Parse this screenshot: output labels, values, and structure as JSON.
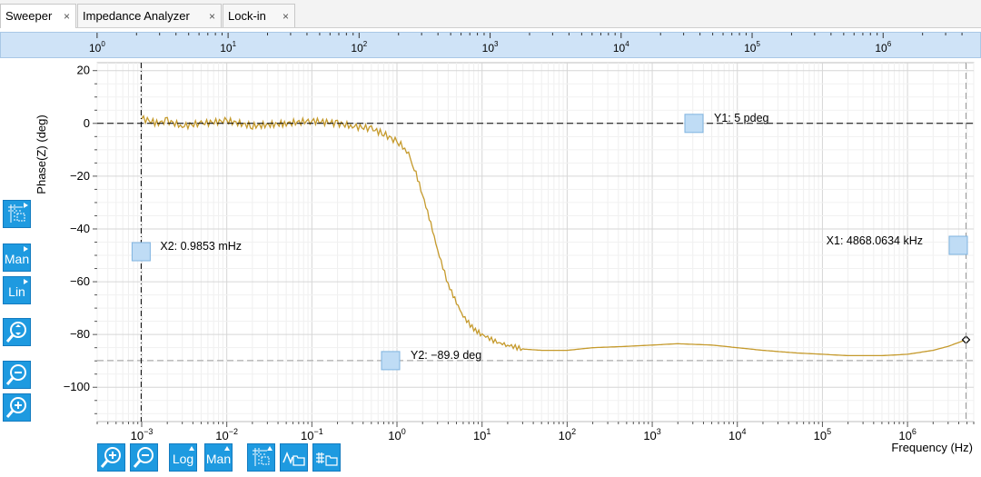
{
  "tabs": [
    {
      "label": "Sweeper",
      "close": "×",
      "active": true
    },
    {
      "label": "Impedance Analyzer",
      "close": "×",
      "active": false
    },
    {
      "label": "Lock-in",
      "close": "×",
      "active": false
    }
  ],
  "overview_axis": {
    "ticks": [
      {
        "base": "10",
        "exp": "0"
      },
      {
        "base": "10",
        "exp": "1"
      },
      {
        "base": "10",
        "exp": "2"
      },
      {
        "base": "10",
        "exp": "3"
      },
      {
        "base": "10",
        "exp": "4"
      },
      {
        "base": "10",
        "exp": "5"
      },
      {
        "base": "10",
        "exp": "6"
      }
    ]
  },
  "left_toolbar": {
    "grid_icon": "grid-options-icon",
    "mode_label": "Man",
    "scale_label": "Lin",
    "zoom_fit_icon": "zoom-fit-icon",
    "zoom_out_icon": "zoom-out-icon",
    "zoom_in_icon": "zoom-in-icon"
  },
  "bottom_toolbar": {
    "zoom_in_icon": "zoom-in-icon",
    "zoom_out_icon": "zoom-out-icon",
    "scale_label": "Log",
    "mode_label": "Man",
    "grid_icon": "grid-options-icon",
    "save_signal_icon": "save-signal-icon",
    "save_table_icon": "save-table-icon"
  },
  "colors": {
    "trace": "#c59a2c",
    "marker_fill": "#bfdcf5",
    "marker_stroke": "#7fb3e0",
    "accent": "#1e9ae0"
  },
  "markers": {
    "x1": {
      "label": "X1: 4868.0634 kHz",
      "freq_hz": 4868063.4
    },
    "x2": {
      "label": "X2: 0.9853 mHz",
      "freq_hz": 0.0009853
    },
    "y1": {
      "label": "Y1: 5 pdeg",
      "deg": 0
    },
    "y2": {
      "label": "Y2: −89.9 deg",
      "deg": -89.9
    }
  },
  "chart_data": {
    "type": "line",
    "title": "",
    "xlabel": "Frequency (Hz)",
    "ylabel": "Phase(Z) (deg)",
    "x_scale": "log",
    "xlim": [
      0.0003,
      6000000
    ],
    "ylim": [
      -113,
      23
    ],
    "grid": true,
    "y_ticks": [
      "20",
      "0",
      "−20",
      "−40",
      "−60",
      "−80",
      "−100"
    ],
    "y_tick_values": [
      20,
      0,
      -20,
      -40,
      -60,
      -80,
      -100
    ],
    "x_ticks": [
      {
        "base": "10",
        "exp": "−3",
        "value": 0.001
      },
      {
        "base": "10",
        "exp": "−2",
        "value": 0.01
      },
      {
        "base": "10",
        "exp": "−1",
        "value": 0.1
      },
      {
        "base": "10",
        "exp": "0",
        "value": 1
      },
      {
        "base": "10",
        "exp": "1",
        "value": 10
      },
      {
        "base": "10",
        "exp": "2",
        "value": 100
      },
      {
        "base": "10",
        "exp": "3",
        "value": 1000
      },
      {
        "base": "10",
        "exp": "4",
        "value": 10000
      },
      {
        "base": "10",
        "exp": "5",
        "value": 100000
      },
      {
        "base": "10",
        "exp": "6",
        "value": 1000000
      }
    ],
    "series": [
      {
        "color": "#c59a2c",
        "x": [
          0.001,
          0.0015,
          0.002,
          0.003,
          0.005,
          0.01,
          0.02,
          0.05,
          0.1,
          0.2,
          0.3,
          0.5,
          0.7,
          1,
          1.3,
          1.6,
          2,
          2.5,
          3,
          4,
          5,
          6,
          8,
          10,
          15,
          20,
          30,
          50,
          100,
          200,
          500,
          1000,
          2000,
          5000,
          10000,
          20000,
          50000,
          100000,
          200000,
          500000,
          1000000,
          2000000,
          3000000,
          4868063
        ],
        "y": [
          2,
          0,
          1,
          -1,
          0,
          1,
          -1,
          0,
          1,
          0,
          -1,
          -2,
          -4,
          -7,
          -10,
          -17,
          -27,
          -38,
          -48,
          -61,
          -68,
          -73,
          -78,
          -80,
          -83,
          -84,
          -85.5,
          -86,
          -86,
          -85,
          -84.5,
          -84,
          -83.5,
          -84,
          -85,
          -86,
          -87,
          -87.5,
          -88,
          -88,
          -87.5,
          -86,
          -84.5,
          -82
        ]
      }
    ]
  }
}
